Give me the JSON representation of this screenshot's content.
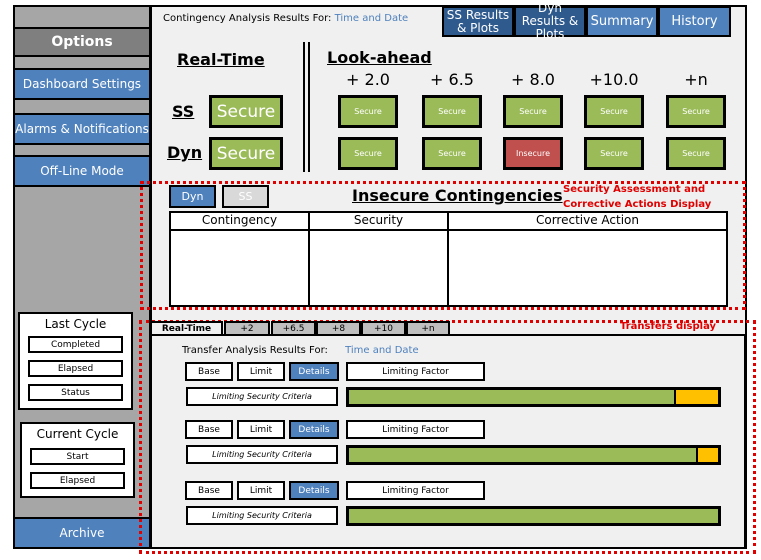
{
  "sidebar": {
    "options": "Options",
    "items": [
      {
        "label": "Dashboard Settings"
      },
      {
        "label": "Alarms & Notifications"
      },
      {
        "label": "Off-Line Mode"
      }
    ],
    "last_cycle": {
      "title": "Last Cycle",
      "fields": [
        "Completed",
        "Elapsed",
        "Status"
      ]
    },
    "current_cycle": {
      "title": "Current Cycle",
      "fields": [
        "Start",
        "Elapsed"
      ]
    },
    "archive": "Archive"
  },
  "header": {
    "label": "Contingency Analysis Results For:",
    "time": "Time and Date",
    "tabs": [
      {
        "label": "SS Results & Plots"
      },
      {
        "label": "Dyn Results & Plots"
      },
      {
        "label": "Summary"
      },
      {
        "label": "History"
      }
    ]
  },
  "realtime": {
    "title": "Real-Time",
    "rows": [
      {
        "label": "SS",
        "status": "Secure"
      },
      {
        "label": "Dyn",
        "status": "Secure"
      }
    ]
  },
  "lookahead": {
    "title": "Look-ahead",
    "horizons": [
      "+ 2.0",
      "+ 6.5",
      "+ 8.0",
      "+10.0",
      "+n"
    ],
    "ss": [
      "Secure",
      "Secure",
      "Secure",
      "Secure",
      "Secure"
    ],
    "dyn": [
      "Secure",
      "Secure",
      "Insecure",
      "Secure",
      "Secure"
    ]
  },
  "colors": {
    "secure": "#9bbb59",
    "insecure": "#c0504d",
    "accent": "#4f81bd",
    "warning": "#ffc000",
    "annotation": "#e00000"
  },
  "insecure": {
    "toggle": [
      "Dyn",
      "SS"
    ],
    "title": "Insecure Contingencies",
    "columns": [
      "Contingency",
      "Security",
      "Corrective Action"
    ],
    "rows": [],
    "annotation": "Security Assessment and Corrective Actions Display"
  },
  "transfers": {
    "annotation": "Transfers display",
    "tabs": [
      "Real-Time",
      "+2",
      "+6.5",
      "+8",
      "+10",
      "+n"
    ],
    "label": "Transfer Analysis Results For:",
    "time": "Time and Date",
    "rows": [
      {
        "base": "Base",
        "limit": "Limit",
        "details": "Details",
        "factor": "Limiting Factor",
        "criteria": "Limiting Security Criteria",
        "progress": 0.88
      },
      {
        "base": "Base",
        "limit": "Limit",
        "details": "Details",
        "factor": "Limiting Factor",
        "criteria": "Limiting Security Criteria",
        "progress": 0.94
      },
      {
        "base": "Base",
        "limit": "Limit",
        "details": "Details",
        "factor": "Limiting Factor",
        "criteria": "Limiting Security Criteria",
        "progress": 1.0
      }
    ]
  }
}
